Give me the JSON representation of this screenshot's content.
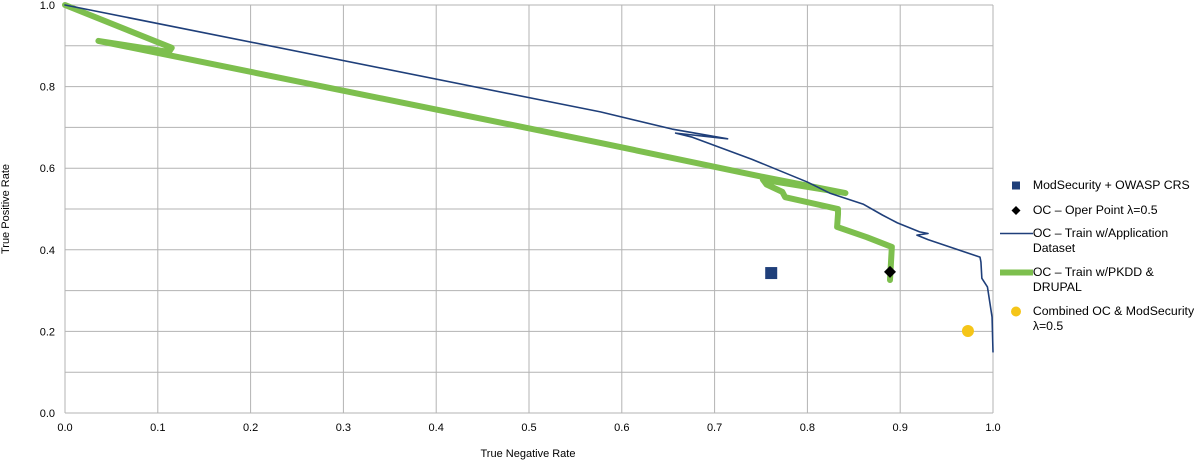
{
  "chart_data": {
    "type": "line",
    "title": "",
    "xlabel": "True Negative Rate",
    "ylabel": "True Positive Rate",
    "xlim": [
      0,
      1
    ],
    "ylim": [
      0,
      1
    ],
    "grid": true,
    "legend_position": "right",
    "xticks": [
      "0.0",
      "0.1",
      "0.2",
      "0.3",
      "0.4",
      "0.5",
      "0.6",
      "0.7",
      "0.8",
      "0.9",
      "1.0"
    ],
    "yticks": [
      "0.0",
      "0.2",
      "0.4",
      "0.6",
      "0.8",
      "1.0"
    ],
    "series": [
      {
        "name": "ModSecurity + OWASP CRS",
        "kind": "marker-square",
        "color": "#1f3f7a",
        "points": [
          [
            0.761,
            0.343
          ]
        ]
      },
      {
        "name": "OC – Oper Point λ=0.5",
        "kind": "marker-diamond",
        "color": "#000000",
        "points": [
          [
            0.889,
            0.346
          ]
        ]
      },
      {
        "name": "OC – Train w/Application Dataset",
        "kind": "line-thin",
        "color": "#1f3f7a",
        "points": [
          [
            0,
            1
          ],
          [
            0.577,
            0.738
          ],
          [
            0.654,
            0.696
          ],
          [
            0.714,
            0.672
          ],
          [
            0.658,
            0.686
          ],
          [
            0.676,
            0.676
          ],
          [
            0.74,
            0.622
          ],
          [
            0.8,
            0.566
          ],
          [
            0.824,
            0.539
          ],
          [
            0.86,
            0.512
          ],
          [
            0.881,
            0.485
          ],
          [
            0.897,
            0.466
          ],
          [
            0.921,
            0.444
          ],
          [
            0.93,
            0.44
          ],
          [
            0.918,
            0.436
          ],
          [
            0.93,
            0.425
          ],
          [
            0.986,
            0.382
          ],
          [
            0.987,
            0.37
          ],
          [
            0.988,
            0.33
          ],
          [
            0.994,
            0.309
          ],
          [
            0.999,
            0.235
          ],
          [
            1.0,
            0.15
          ]
        ]
      },
      {
        "name": "OC – Train w/PKDD & DRUPAL",
        "kind": "line-thick",
        "color": "#7dbf4e",
        "points": [
          [
            0,
            1
          ],
          [
            0.115,
            0.895
          ],
          [
            0.112,
            0.885
          ],
          [
            0.036,
            0.912
          ],
          [
            0.577,
            0.662
          ],
          [
            0.749,
            0.58
          ],
          [
            0.841,
            0.539
          ],
          [
            0.752,
            0.572
          ],
          [
            0.756,
            0.56
          ],
          [
            0.773,
            0.542
          ],
          [
            0.776,
            0.529
          ],
          [
            0.833,
            0.5
          ],
          [
            0.833,
            0.488
          ],
          [
            0.832,
            0.456
          ],
          [
            0.864,
            0.431
          ],
          [
            0.891,
            0.407
          ],
          [
            0.889,
            0.326
          ]
        ]
      },
      {
        "name": "Combined OC & ModSecurity λ=0.5",
        "kind": "marker-circle",
        "color": "#f5c518",
        "points": [
          [
            0.973,
            0.201
          ]
        ]
      }
    ]
  }
}
